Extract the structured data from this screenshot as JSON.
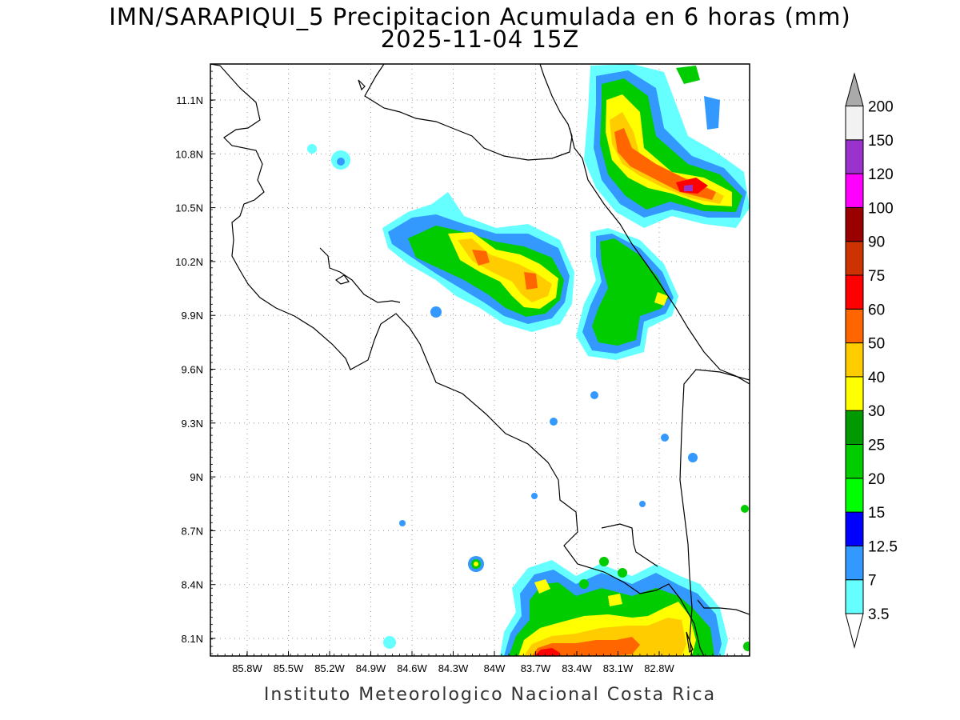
{
  "header": {
    "title": "IMN/SARAPIQUI_5 Precipitacion Acumulada en 6 horas (mm)",
    "subtitle": "2025-11-04 15Z"
  },
  "footer": {
    "credit": "Instituto Meteorologico Nacional Costa Rica"
  },
  "map": {
    "lon_ticks": [
      "85.8W",
      "85.5W",
      "85.2W",
      "84.9W",
      "84.6W",
      "84.3W",
      "84W",
      "83.7W",
      "83.4W",
      "83.1W",
      "82.8W"
    ],
    "lat_ticks": [
      "11.1N",
      "10.8N",
      "10.5N",
      "10.2N",
      "9.9N",
      "9.6N",
      "9.3N",
      "9N",
      "8.7N",
      "8.4N",
      "8.1N"
    ]
  },
  "colorbar": {
    "levels": [
      "3.5",
      "7",
      "12.5",
      "15",
      "20",
      "25",
      "30",
      "40",
      "50",
      "60",
      "75",
      "90",
      "100",
      "120",
      "150",
      "200"
    ],
    "colors": [
      "#66ffff",
      "#3399ff",
      "#0000ff",
      "#00ff00",
      "#00cc00",
      "#009900",
      "#ffff00",
      "#ffcc00",
      "#ff6600",
      "#ff0000",
      "#cc3300",
      "#990000",
      "#ff00ff",
      "#9933cc",
      "#f2f2f2",
      "#aaaaaa"
    ]
  }
}
